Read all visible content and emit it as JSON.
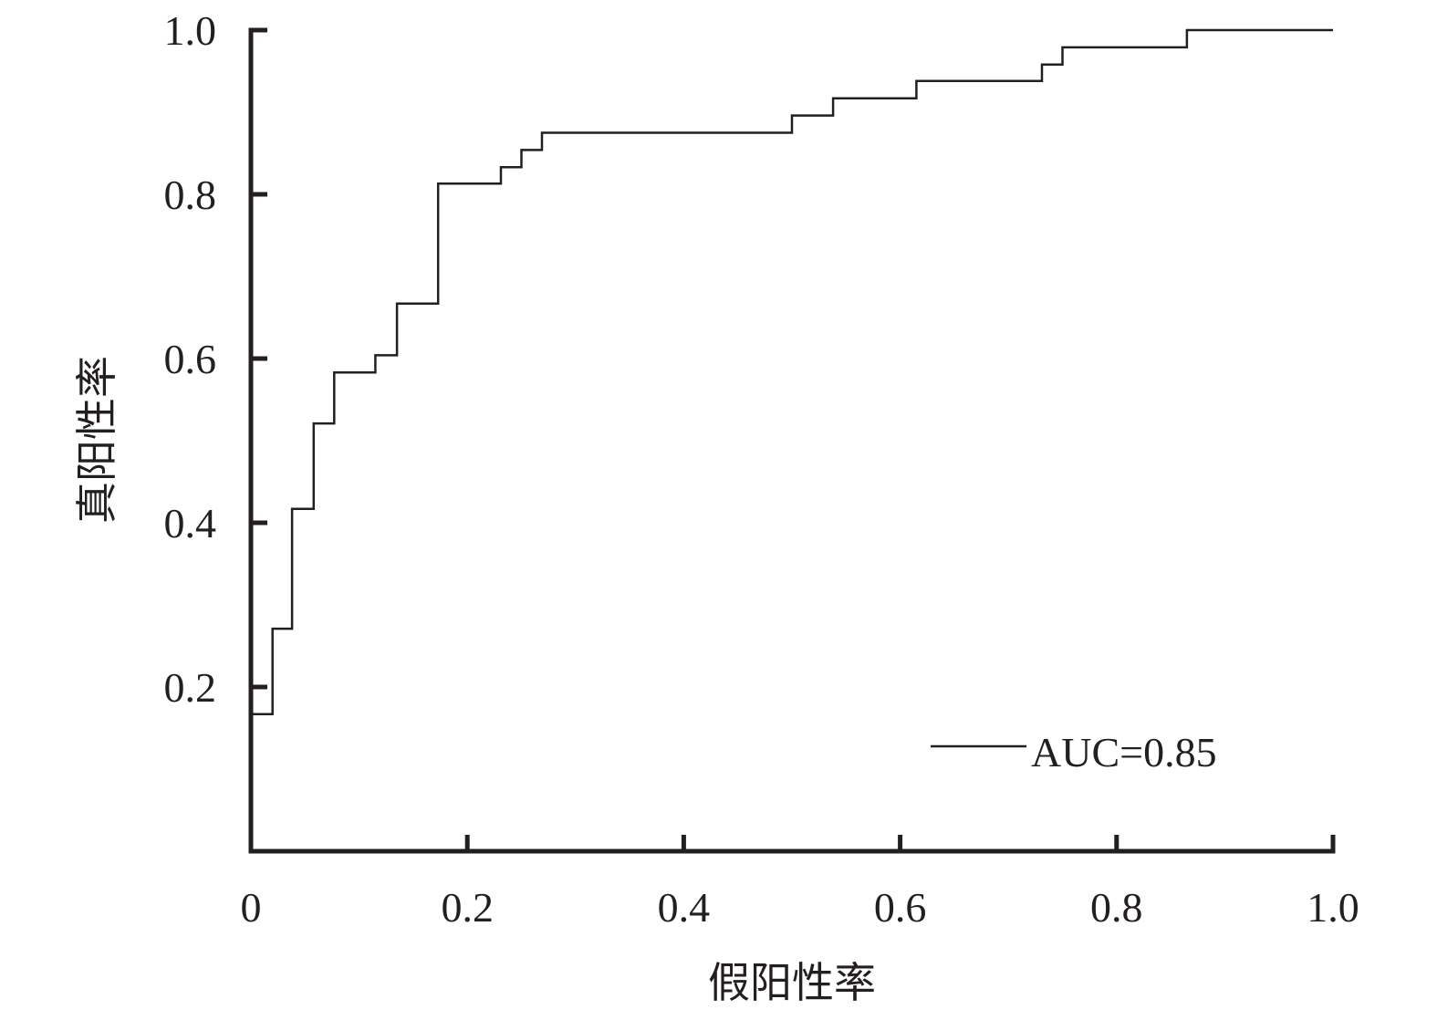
{
  "chart_data": {
    "type": "line",
    "xlabel": "假阳性率",
    "ylabel": "真阳性率",
    "xlim": [
      0,
      1
    ],
    "ylim": [
      0,
      1
    ],
    "x_ticks": [
      0,
      0.2,
      0.4,
      0.6,
      0.8,
      1.0
    ],
    "x_tick_labels": [
      "0",
      "0.2",
      "0.4",
      "0.6",
      "0.8",
      "1.0"
    ],
    "y_ticks": [
      0.2,
      0.4,
      0.6,
      0.8,
      1.0
    ],
    "y_tick_labels": [
      "0.2",
      "0.4",
      "0.6",
      "0.8",
      "1.0"
    ],
    "grid": false,
    "legend_position": "bottom-right",
    "series": [
      {
        "name": "AUC=0.85",
        "color": "#231f20",
        "step": true,
        "points": [
          [
            0.0,
            0.167
          ],
          [
            0.02,
            0.167
          ],
          [
            0.02,
            0.271
          ],
          [
            0.038,
            0.271
          ],
          [
            0.038,
            0.417
          ],
          [
            0.058,
            0.417
          ],
          [
            0.058,
            0.521
          ],
          [
            0.077,
            0.521
          ],
          [
            0.077,
            0.583
          ],
          [
            0.115,
            0.583
          ],
          [
            0.115,
            0.604
          ],
          [
            0.135,
            0.604
          ],
          [
            0.135,
            0.667
          ],
          [
            0.173,
            0.667
          ],
          [
            0.173,
            0.813
          ],
          [
            0.231,
            0.813
          ],
          [
            0.231,
            0.833
          ],
          [
            0.25,
            0.833
          ],
          [
            0.25,
            0.854
          ],
          [
            0.269,
            0.854
          ],
          [
            0.269,
            0.875
          ],
          [
            0.5,
            0.875
          ],
          [
            0.5,
            0.896
          ],
          [
            0.538,
            0.896
          ],
          [
            0.538,
            0.917
          ],
          [
            0.615,
            0.917
          ],
          [
            0.615,
            0.938
          ],
          [
            0.731,
            0.938
          ],
          [
            0.731,
            0.958
          ],
          [
            0.75,
            0.958
          ],
          [
            0.75,
            0.979
          ],
          [
            0.865,
            0.979
          ],
          [
            0.865,
            1.0
          ],
          [
            1.0,
            1.0
          ]
        ]
      }
    ]
  }
}
